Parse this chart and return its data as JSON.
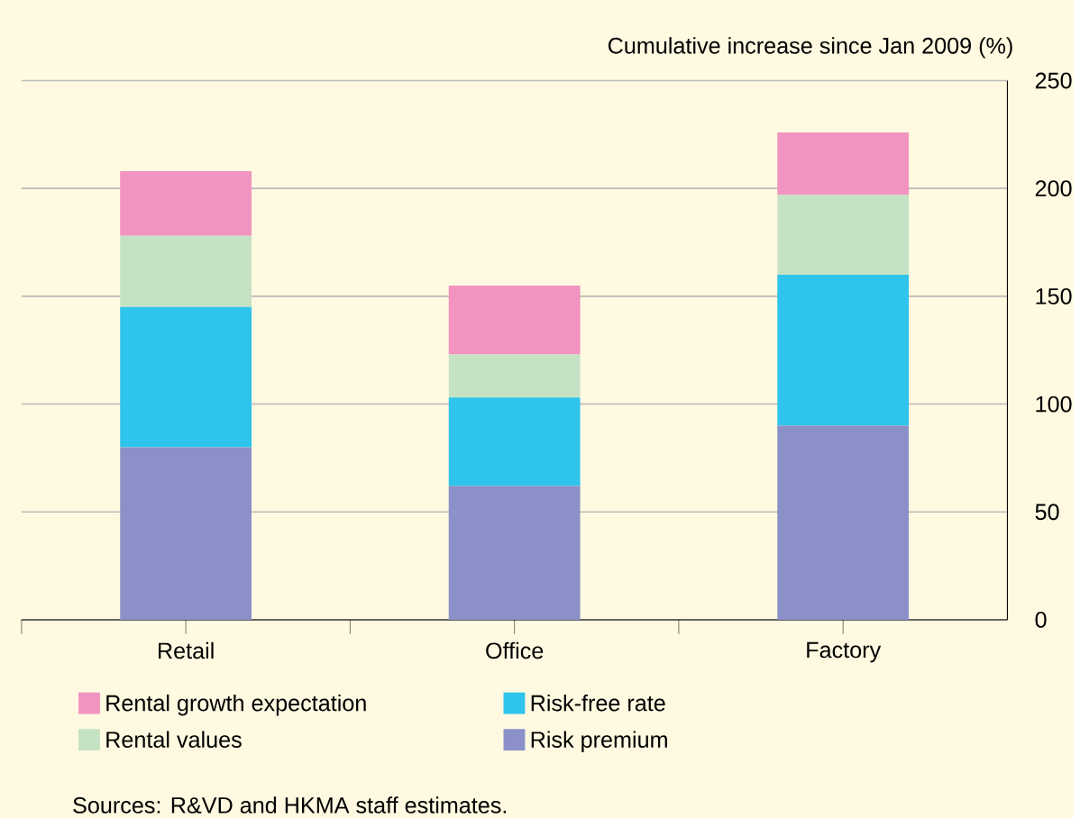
{
  "chart_data": {
    "type": "bar",
    "stacked": true,
    "ylabel": "Cumulative increase since Jan 2009 (%)",
    "categories": [
      "Retail",
      "Office",
      "Factory"
    ],
    "series": [
      {
        "name": "Risk premium",
        "color": "#8b90c8",
        "values": [
          80,
          62,
          90
        ]
      },
      {
        "name": "Risk-free rate",
        "color": "#2ec4ec",
        "values": [
          65,
          41,
          70
        ]
      },
      {
        "name": "Rental values",
        "color": "#c5e3c4",
        "values": [
          33,
          20,
          37
        ]
      },
      {
        "name": "Rental growth expectation",
        "color": "#f194c1",
        "values": [
          30,
          32,
          29
        ]
      }
    ],
    "ylim": [
      0,
      250
    ],
    "yticks": [
      0,
      50,
      100,
      150,
      200,
      250
    ],
    "grid": "y",
    "legend": "bottom",
    "annotations": [
      "Sources: R&VD and HKMA staff estimates."
    ]
  }
}
